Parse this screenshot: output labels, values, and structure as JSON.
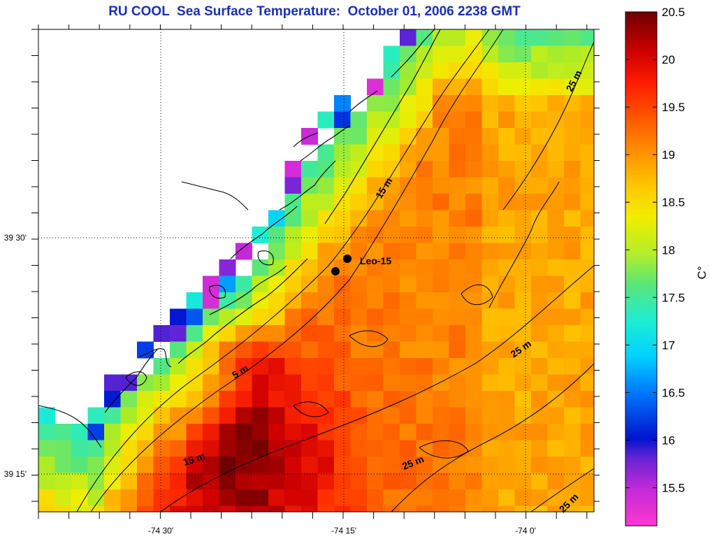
{
  "title": "RU COOL  Sea Surface Temperature:  October 01, 2006 2238 GMT",
  "chart_data": {
    "type": "heatmap",
    "title": "RU COOL  Sea Surface Temperature:  October 01, 2006 2238 GMT",
    "x_ticks": [
      "-74 30'",
      "-74 15'",
      "-74 0'"
    ],
    "y_ticks": [
      "39 30'",
      "39 15'"
    ],
    "colorbar": {
      "label": "C°",
      "ticks": [
        "20.5",
        "20",
        "19.5",
        "19",
        "18.5",
        "18",
        "17.5",
        "17",
        "16.5",
        "16",
        "15.5"
      ],
      "range": [
        15.1,
        20.5
      ],
      "colors": [
        "#ff37d2",
        "#8830d8",
        "#0014d0",
        "#0096ff",
        "#00e6ff",
        "#3ce68a",
        "#c8ee1e",
        "#ffd200",
        "#ff8c00",
        "#ff2a00",
        "#c80000",
        "#6e0000"
      ]
    },
    "isobath_labels": [
      "25 m",
      "15 m",
      "5 m",
      "15 m",
      "25 m",
      "25 m",
      "25 m"
    ],
    "stations": [
      {
        "name": "Leo-15"
      }
    ]
  }
}
